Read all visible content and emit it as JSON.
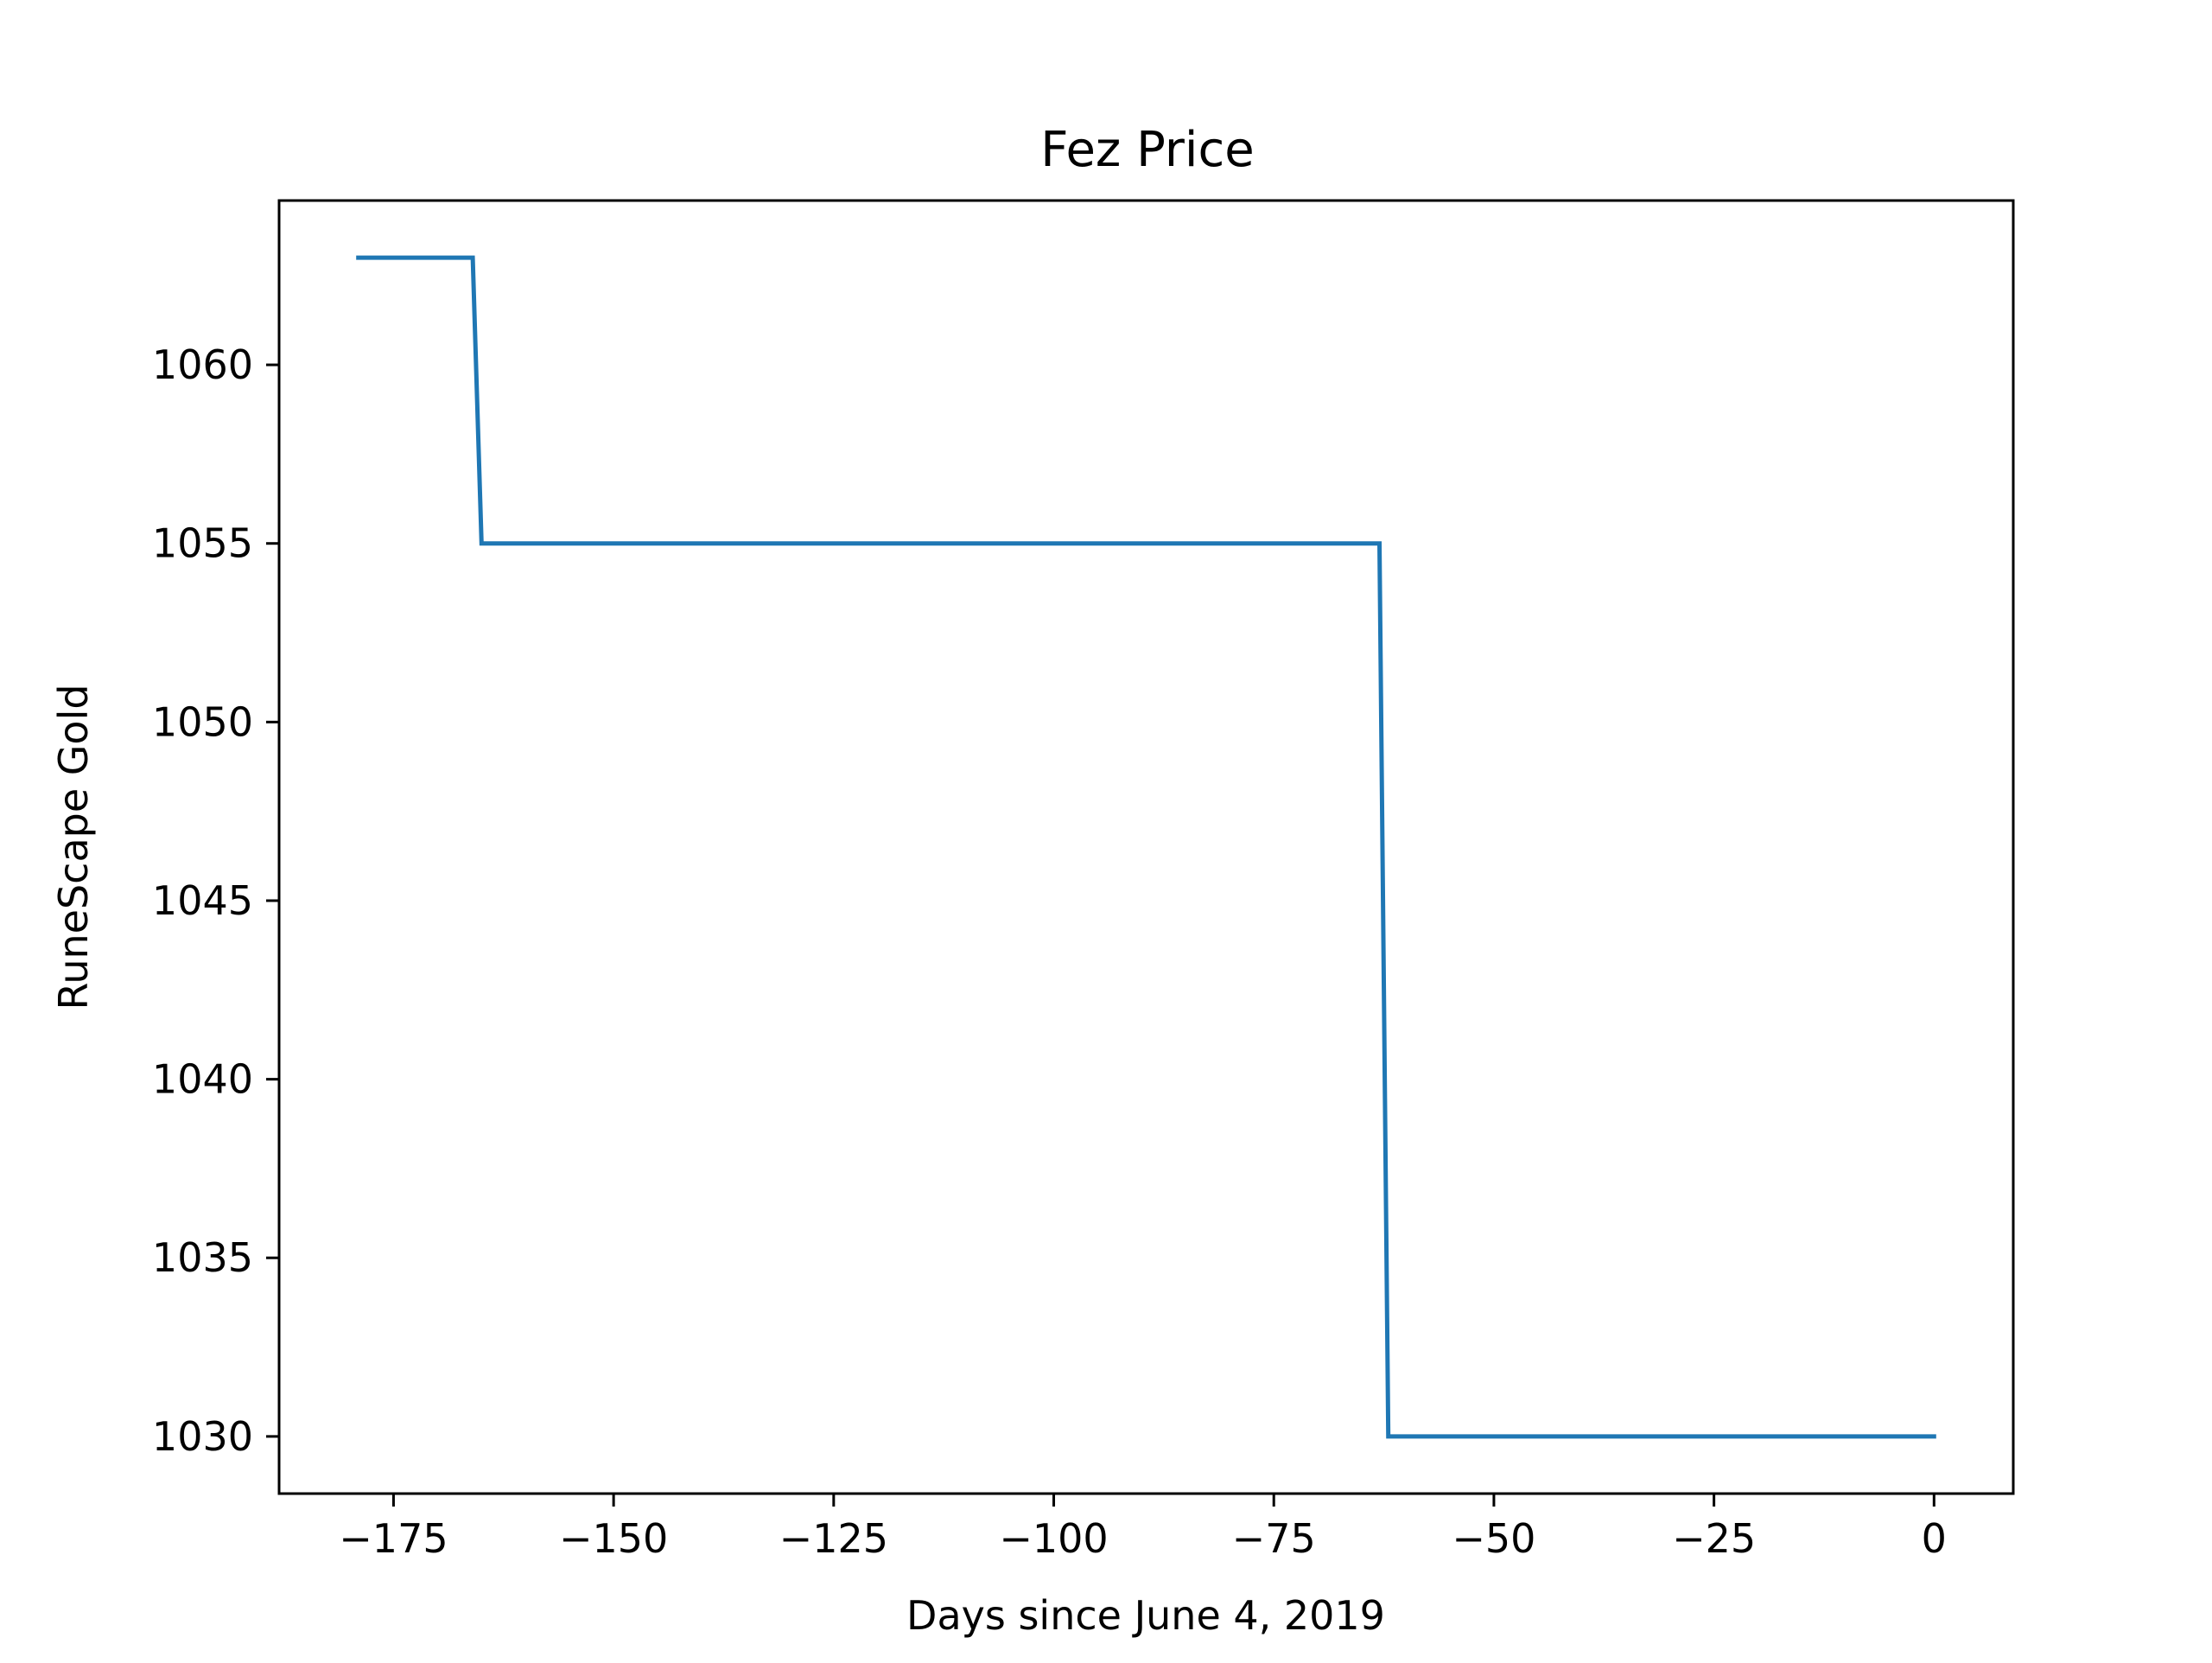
{
  "chart_data": {
    "type": "line",
    "title": "Fez Price",
    "xlabel": "Days since June 4, 2019",
    "ylabel": "RuneScape Gold",
    "xlim": [
      -188,
      9
    ],
    "ylim": [
      1028.4,
      1064.6
    ],
    "x_ticks": [
      -175,
      -150,
      -125,
      -100,
      -75,
      -50,
      -25,
      0
    ],
    "x_tick_labels": [
      "−175",
      "−150",
      "−125",
      "−100",
      "−75",
      "−50",
      "−25",
      "0"
    ],
    "y_ticks": [
      1030,
      1035,
      1040,
      1045,
      1050,
      1055,
      1060
    ],
    "y_tick_labels": [
      "1030",
      "1035",
      "1040",
      "1045",
      "1050",
      "1055",
      "1060"
    ],
    "grid": false,
    "series": [
      {
        "color": "#1f77b4",
        "x": [
          -179,
          -166,
          -165,
          -63,
          -62,
          0
        ],
        "y": [
          1063,
          1063,
          1055,
          1055,
          1030,
          1030
        ]
      }
    ]
  }
}
